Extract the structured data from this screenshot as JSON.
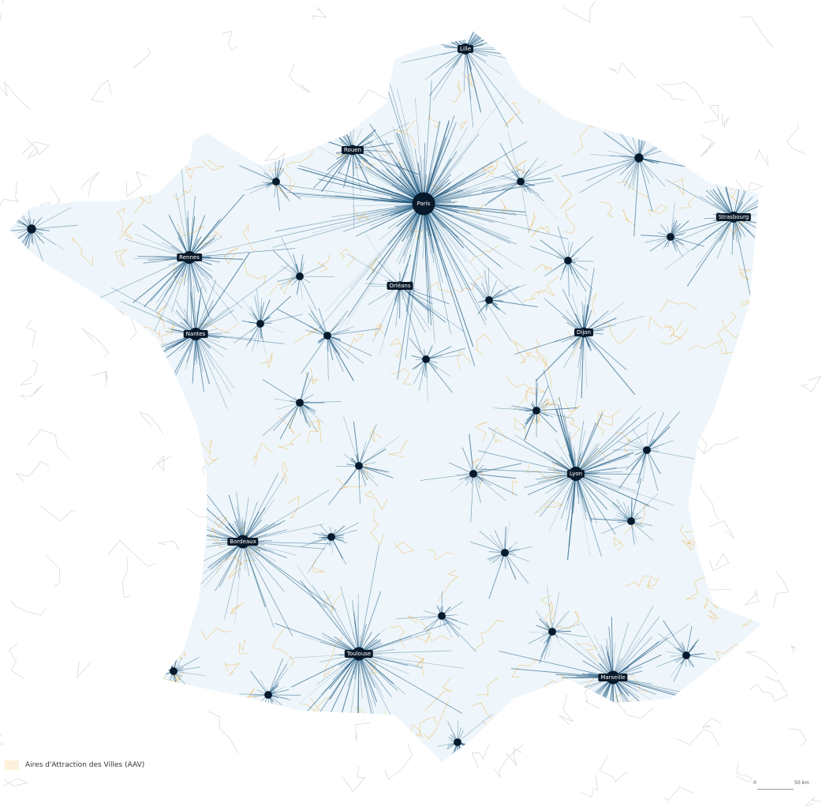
{
  "map": {
    "cities": [
      {
        "name": "Lille"
      },
      {
        "name": "Rouen"
      },
      {
        "name": "Paris"
      },
      {
        "name": "Strasbourg"
      },
      {
        "name": "Rennes"
      },
      {
        "name": "Orléans"
      },
      {
        "name": "Nantes"
      },
      {
        "name": "Dijon"
      },
      {
        "name": "Lyon"
      },
      {
        "name": "Bordeaux"
      },
      {
        "name": "Toulouse"
      },
      {
        "name": "Marseille"
      }
    ],
    "colors": {
      "flows": "#0b4a74",
      "aav_outline": "#f0b44c",
      "borders": "#cfcfcf"
    }
  },
  "legend": {
    "label": "Aires d'Attraction des Villes (AAV)"
  },
  "scale": {
    "start": "0",
    "end": "50 km"
  }
}
